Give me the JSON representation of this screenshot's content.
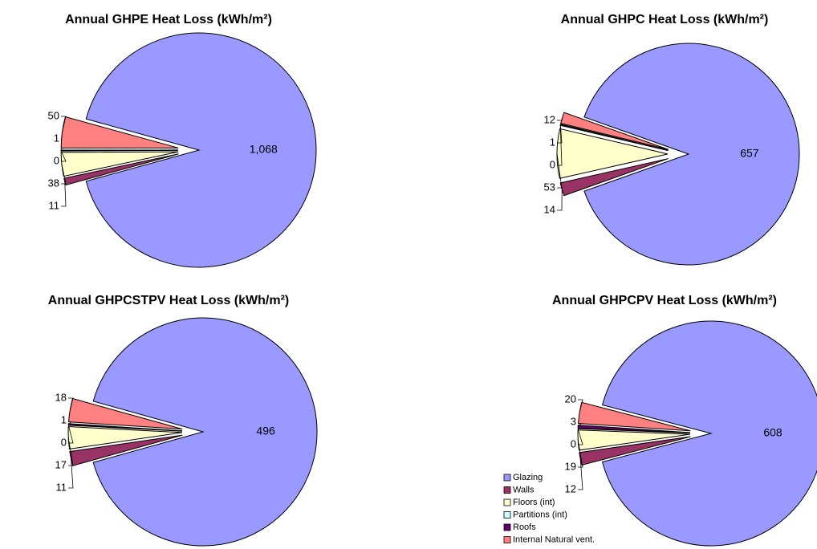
{
  "chart_data": [
    {
      "type": "pie",
      "title": "Annual GHPE Heat Loss (kWh/m²)",
      "values": [
        1068,
        11,
        38,
        0,
        1,
        50
      ],
      "value_labels": [
        "1,068",
        "11",
        "38",
        "0",
        "1",
        "50"
      ],
      "colors": [
        "#9999ff",
        "#993366",
        "#ffffcc",
        "#ccffff",
        "#660066",
        "#ff8080"
      ]
    },
    {
      "type": "pie",
      "title": "Annual GHPC Heat Loss (kWh/m²)",
      "values": [
        657,
        14,
        53,
        0,
        1,
        12
      ],
      "colors": [
        "#9999ff",
        "#993366",
        "#ffffcc",
        "#ccffff",
        "#660066",
        "#ff8080"
      ]
    },
    {
      "type": "pie",
      "title": "Annual GHPCSTPV Heat Loss (kWh/m²)",
      "values": [
        496,
        11,
        17,
        0,
        1,
        18
      ],
      "colors": [
        "#9999ff",
        "#993366",
        "#ffffcc",
        "#ccffff",
        "#660066",
        "#ff8080"
      ]
    },
    {
      "type": "pie",
      "title": "Annual GHPCPV Heat Loss (kWh/m²)",
      "categories": [
        "Glazing",
        "Walls",
        "Floors (int)",
        "Partitions (int)",
        "Roofs",
        "Internal Natural vent."
      ],
      "values": [
        608,
        12,
        19,
        0,
        3,
        20
      ],
      "legend": "lower left",
      "colors": [
        "#9999ff",
        "#993366",
        "#ffffcc",
        "#ccffff",
        "#660066",
        "#ff8080"
      ]
    }
  ]
}
